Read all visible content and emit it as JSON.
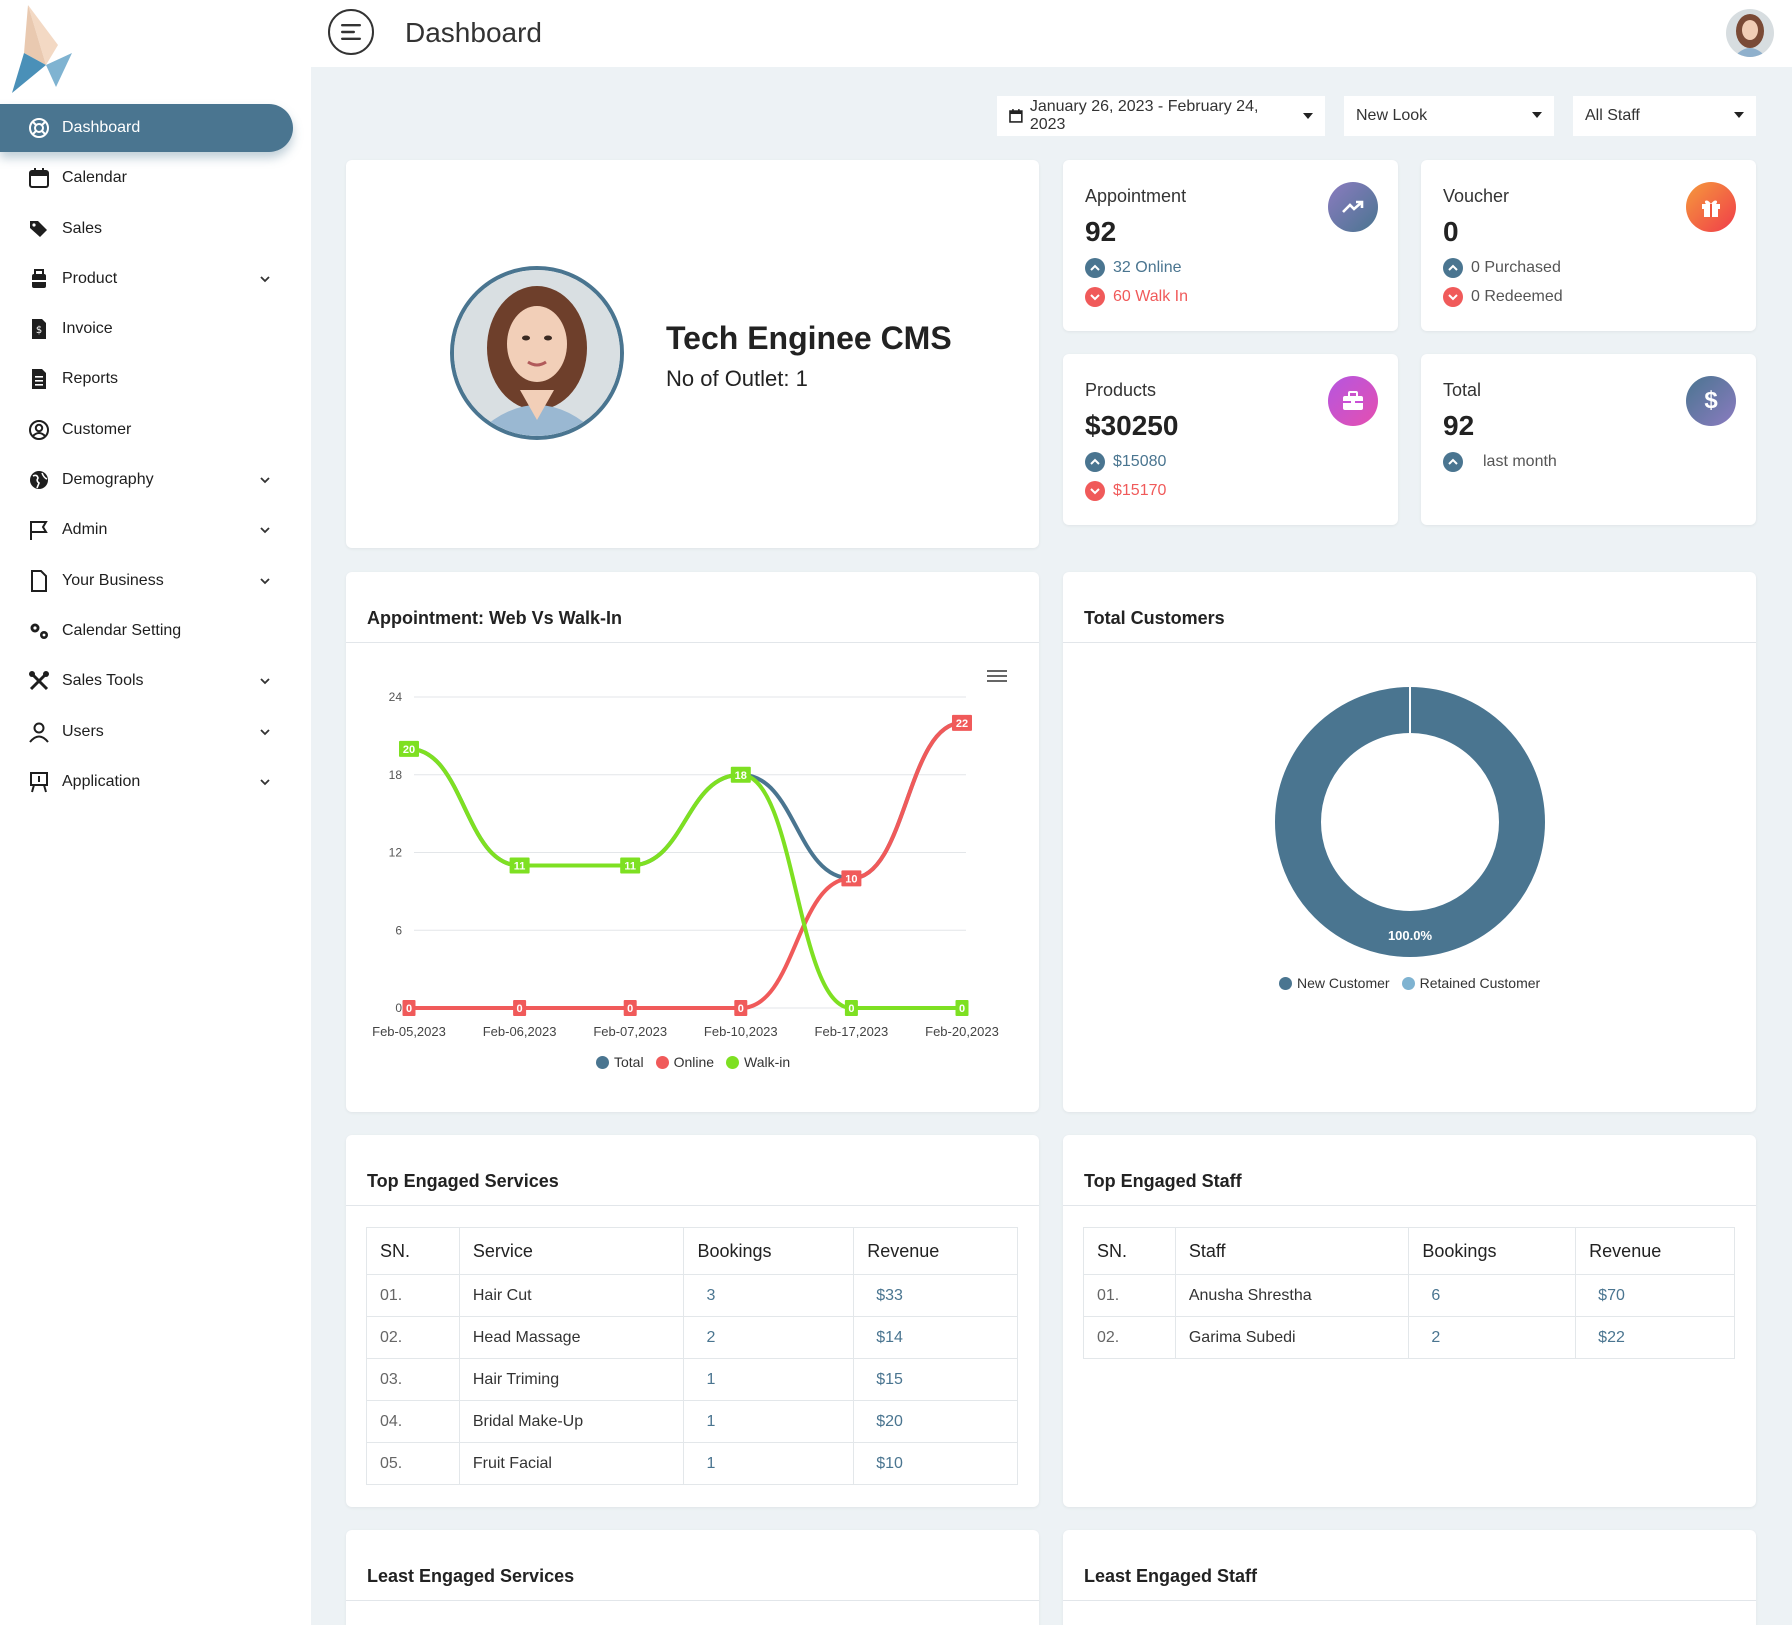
{
  "app": {
    "page_title": "Dashboard"
  },
  "sidebar": {
    "items": [
      {
        "label": "Dashboard",
        "icon": "dashboard-icon",
        "active": true,
        "expandable": false
      },
      {
        "label": "Calendar",
        "icon": "calendar-icon",
        "expandable": false
      },
      {
        "label": "Sales",
        "icon": "tags-icon",
        "expandable": false
      },
      {
        "label": "Product",
        "icon": "product-icon",
        "expandable": true
      },
      {
        "label": "Invoice",
        "icon": "invoice-icon",
        "expandable": false
      },
      {
        "label": "Reports",
        "icon": "reports-icon",
        "expandable": false
      },
      {
        "label": "Customer",
        "icon": "customer-icon",
        "expandable": false
      },
      {
        "label": "Demography",
        "icon": "globe-icon",
        "expandable": true
      },
      {
        "label": "Admin",
        "icon": "flag-icon",
        "expandable": true
      },
      {
        "label": "Your Business",
        "icon": "file-icon",
        "expandable": true
      },
      {
        "label": "Calendar Setting",
        "icon": "gears-icon",
        "expandable": false
      },
      {
        "label": "Sales Tools",
        "icon": "tools-icon",
        "expandable": true
      },
      {
        "label": "Users",
        "icon": "user-icon",
        "expandable": true
      },
      {
        "label": "Application",
        "icon": "application-icon",
        "expandable": true
      }
    ]
  },
  "filters": {
    "date_range": "January 26, 2023 - February 24, 2023",
    "outlet": "New Look",
    "staff": "All Staff"
  },
  "profile": {
    "name": "Tech Enginee CMS",
    "outlets": "No of Outlet: 1"
  },
  "stats": {
    "appointment": {
      "label": "Appointment",
      "value": "92",
      "up": "32 Online",
      "down": "60 Walk In",
      "icon": "trending-up-icon",
      "color": "#4a7590"
    },
    "voucher": {
      "label": "Voucher",
      "value": "0",
      "up": "0 Purchased",
      "down": "0 Redeemed",
      "icon": "gift-icon",
      "color": "#f0543c"
    },
    "products": {
      "label": "Products",
      "value": "$30250",
      "up": "$15080",
      "down": "$15170",
      "icon": "briefcase-icon",
      "color": "#c94fd6"
    },
    "total": {
      "label": "Total",
      "value": "92",
      "up": "last month",
      "icon": "dollar-icon",
      "color": "#5a7ea8"
    }
  },
  "appointment_chart": {
    "title": "Appointment: Web Vs Walk-In",
    "legend": [
      "Total",
      "Online",
      "Walk-in"
    ]
  },
  "customers_chart": {
    "title": "Total Customers",
    "center_label": "100.0%",
    "legend": [
      "New Customer",
      "Retained Customer"
    ]
  },
  "chart_data": [
    {
      "type": "line",
      "title": "Appointment: Web Vs Walk-In",
      "categories": [
        "Feb-05,2023",
        "Feb-06,2023",
        "Feb-07,2023",
        "Feb-10,2023",
        "Feb-17,2023",
        "Feb-20,2023"
      ],
      "yticks": [
        0,
        6,
        12,
        18,
        24
      ],
      "ylim": [
        0,
        24
      ],
      "series": [
        {
          "name": "Total",
          "color": "#4a7590",
          "values": [
            20,
            11,
            11,
            18,
            10,
            22
          ]
        },
        {
          "name": "Online",
          "color": "#f05a5a",
          "values": [
            0,
            0,
            0,
            0,
            10,
            22
          ]
        },
        {
          "name": "Walk-in",
          "color": "#7ee022",
          "values": [
            20,
            11,
            11,
            18,
            0,
            0
          ]
        }
      ],
      "legend_position": "bottom",
      "grid": true
    },
    {
      "type": "pie",
      "title": "Total Customers",
      "labels": [
        "New Customer",
        "Retained Customer"
      ],
      "values": [
        100,
        0
      ],
      "colors": [
        "#4a7590",
        "#7fb3d1"
      ],
      "legend_position": "bottom"
    }
  ],
  "top_services": {
    "title": "Top Engaged Services",
    "columns": [
      "SN.",
      "Service",
      "Bookings",
      "Revenue"
    ],
    "rows": [
      [
        "01.",
        "Hair Cut",
        "3",
        "$33"
      ],
      [
        "02.",
        "Head Massage",
        "2",
        "$14"
      ],
      [
        "03.",
        "Hair Triming",
        "1",
        "$15"
      ],
      [
        "04.",
        "Bridal Make-Up",
        "1",
        "$20"
      ],
      [
        "05.",
        "Fruit Facial",
        "1",
        "$10"
      ]
    ]
  },
  "top_staff": {
    "title": "Top Engaged Staff",
    "columns": [
      "SN.",
      "Staff",
      "Bookings",
      "Revenue"
    ],
    "rows": [
      [
        "01.",
        "Anusha Shrestha",
        "6",
        "$70"
      ],
      [
        "02.",
        "Garima Subedi",
        "2",
        "$22"
      ]
    ]
  },
  "least_services": {
    "title": "Least Engaged Services"
  },
  "least_staff": {
    "title": "Least Engaged Staff"
  }
}
